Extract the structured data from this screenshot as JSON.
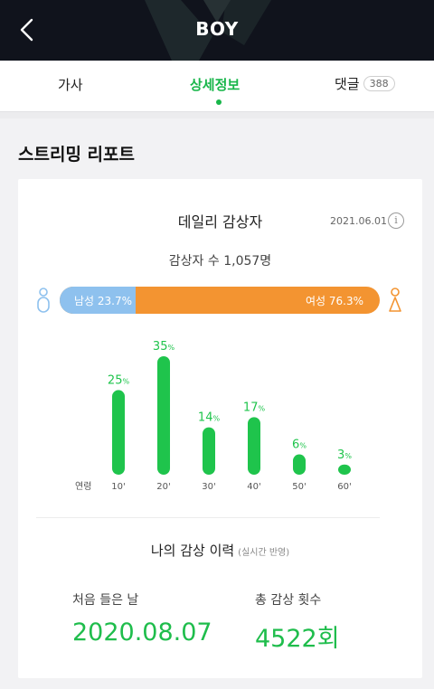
{
  "header": {
    "title": "BOY"
  },
  "tabs": [
    {
      "label": "가사"
    },
    {
      "label": "상세정보"
    },
    {
      "label": "댓글",
      "count": "388"
    }
  ],
  "section_title": "스트리밍 리포트",
  "daily": {
    "title": "데일리 감상자",
    "date": "2021.06.01",
    "info": "i",
    "listeners": "감상자 수 1,057명"
  },
  "gender": {
    "male_label": "남성 23.7%",
    "female_label": "여성 76.3%",
    "male_pct": 23.7,
    "female_pct": 76.3,
    "male_color": "#8ec1ee",
    "female_color": "#f39431"
  },
  "chart_data": {
    "type": "bar",
    "xlabel": "연령",
    "categories": [
      "10'",
      "20'",
      "30'",
      "40'",
      "50'",
      "60'"
    ],
    "values": [
      25,
      35,
      14,
      17,
      6,
      3
    ],
    "data_labels": [
      "25",
      "35",
      "14",
      "17",
      "6",
      "3"
    ],
    "unit": "%",
    "color": "#1fc44c"
  },
  "history": {
    "title": "나의 감상 이력",
    "note": "(실시간 반영)",
    "first_label": "처음 들은 날",
    "first_value": "2020.08.07",
    "total_label": "총 감상 횟수",
    "total_value": "4522회"
  }
}
